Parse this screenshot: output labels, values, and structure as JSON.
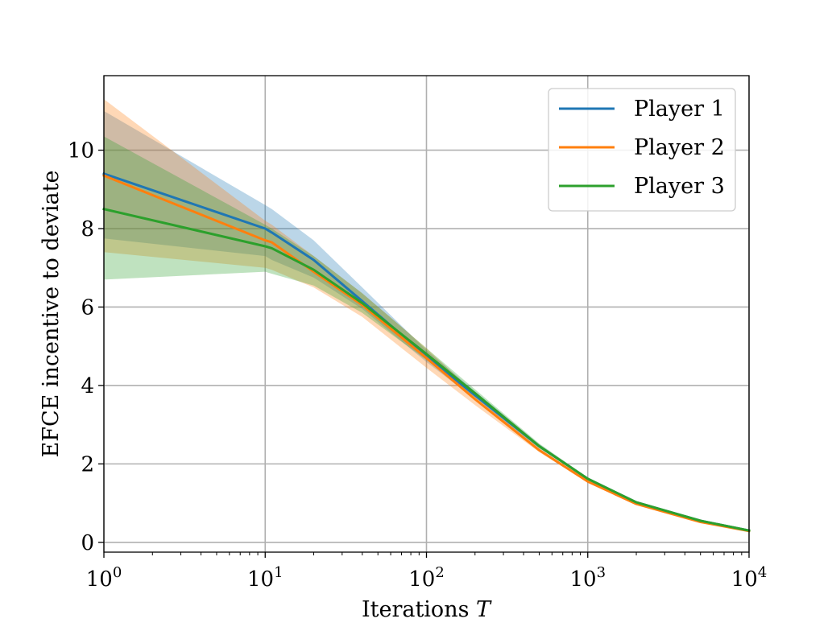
{
  "chart_data": {
    "type": "line",
    "title": "",
    "xlabel": "Iterations",
    "xlabel_var": "T",
    "ylabel": "EFCE incentive to deviate",
    "xscale": "log",
    "xlim": [
      1,
      10000
    ],
    "ylim": [
      -0.25,
      11.9
    ],
    "grid": true,
    "legend_position": "top-right",
    "x_ticks": [
      {
        "value": 1,
        "base": "10",
        "exp": "0"
      },
      {
        "value": 10,
        "base": "10",
        "exp": "1"
      },
      {
        "value": 100,
        "base": "10",
        "exp": "2"
      },
      {
        "value": 1000,
        "base": "10",
        "exp": "3"
      },
      {
        "value": 10000,
        "base": "10",
        "exp": "4"
      }
    ],
    "y_ticks": [
      {
        "value": 0,
        "label": "0"
      },
      {
        "value": 2,
        "label": "2"
      },
      {
        "value": 4,
        "label": "4"
      },
      {
        "value": 6,
        "label": "6"
      },
      {
        "value": 8,
        "label": "8"
      },
      {
        "value": 10,
        "label": "10"
      }
    ],
    "x": [
      1,
      10,
      11,
      20,
      40,
      100,
      200,
      500,
      1000,
      2000,
      5000,
      10000
    ],
    "series": [
      {
        "name": "Player 1",
        "color": "#1f77b4",
        "values": [
          9.4,
          8.0,
          7.9,
          7.2,
          6.15,
          4.75,
          3.75,
          2.45,
          1.62,
          1.02,
          0.55,
          0.3
        ],
        "lower": [
          7.75,
          7.3,
          7.2,
          6.75,
          5.95,
          4.6,
          3.65,
          2.4,
          1.6,
          1.0,
          0.53,
          0.28
        ],
        "upper": [
          11.0,
          8.6,
          8.5,
          7.7,
          6.5,
          4.9,
          3.85,
          2.5,
          1.64,
          1.04,
          0.57,
          0.32
        ]
      },
      {
        "name": "Player 2",
        "color": "#ff7f0e",
        "values": [
          9.35,
          7.7,
          7.65,
          6.9,
          6.05,
          4.7,
          3.65,
          2.35,
          1.55,
          0.98,
          0.52,
          0.29
        ],
        "lower": [
          7.4,
          7.0,
          6.95,
          6.5,
          5.75,
          4.45,
          3.5,
          2.3,
          1.52,
          0.96,
          0.5,
          0.27
        ],
        "upper": [
          11.3,
          8.2,
          8.1,
          7.3,
          6.35,
          4.95,
          3.8,
          2.4,
          1.58,
          1.0,
          0.54,
          0.31
        ]
      },
      {
        "name": "Player 3",
        "color": "#2ca02c",
        "values": [
          8.5,
          7.55,
          7.5,
          6.95,
          6.1,
          4.8,
          3.8,
          2.45,
          1.62,
          1.02,
          0.55,
          0.3
        ],
        "lower": [
          6.7,
          6.9,
          6.85,
          6.55,
          5.85,
          4.65,
          3.7,
          2.4,
          1.6,
          1.0,
          0.53,
          0.28
        ],
        "upper": [
          10.35,
          8.1,
          8.0,
          7.3,
          6.35,
          4.95,
          3.9,
          2.52,
          1.65,
          1.04,
          0.57,
          0.32
        ]
      }
    ]
  }
}
